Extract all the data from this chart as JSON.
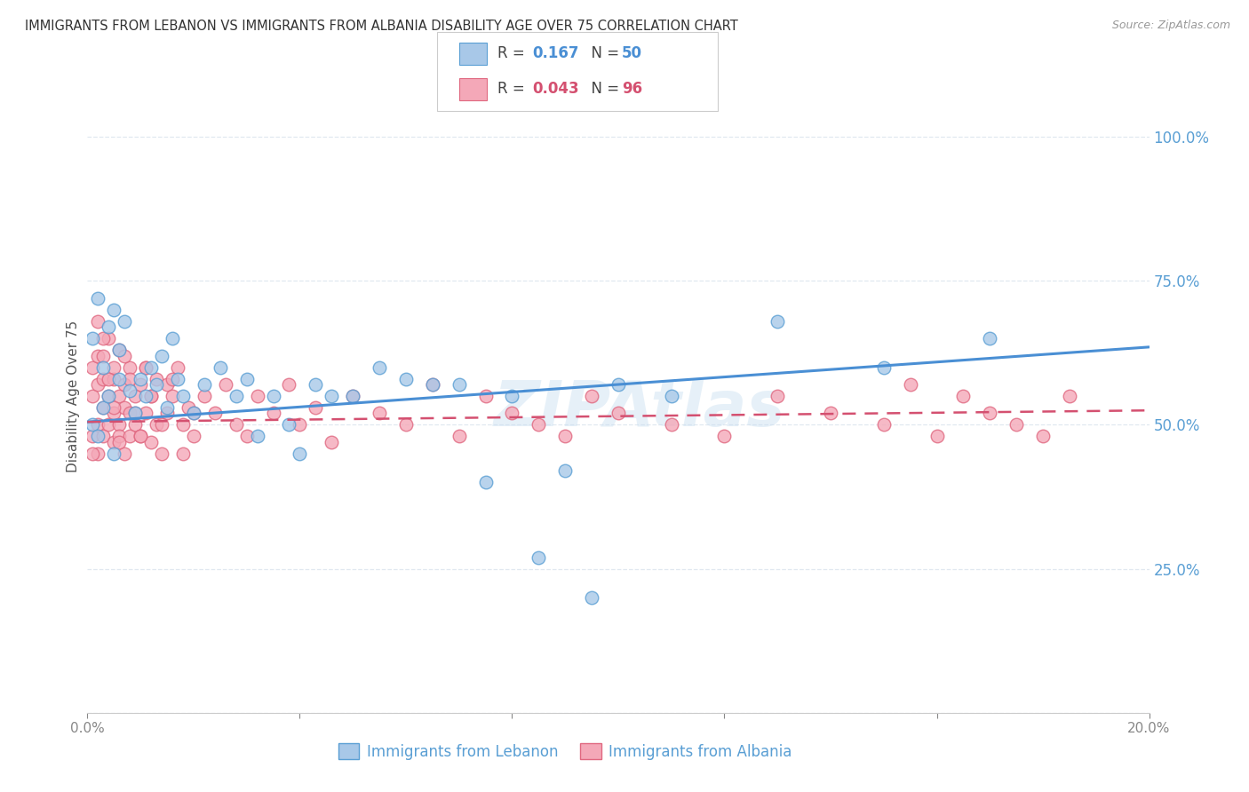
{
  "title": "IMMIGRANTS FROM LEBANON VS IMMIGRANTS FROM ALBANIA DISABILITY AGE OVER 75 CORRELATION CHART",
  "source": "Source: ZipAtlas.com",
  "ylabel": "Disability Age Over 75",
  "x_min": 0.0,
  "x_max": 0.2,
  "y_min": 0.0,
  "y_max": 1.1,
  "lebanon_color": "#a8c8e8",
  "albania_color": "#f4a8b8",
  "lebanon_edge_color": "#5a9fd4",
  "albania_edge_color": "#e06880",
  "lebanon_line_color": "#4a8fd4",
  "albania_line_color": "#d45070",
  "R_lebanon": 0.167,
  "N_lebanon": 50,
  "R_albania": 0.043,
  "N_albania": 96,
  "legend_label_lebanon": "Immigrants from Lebanon",
  "legend_label_albania": "Immigrants from Albania",
  "watermark": "ZIPAtlas",
  "lebanon_x": [
    0.001,
    0.001,
    0.002,
    0.002,
    0.003,
    0.003,
    0.004,
    0.004,
    0.005,
    0.005,
    0.006,
    0.006,
    0.007,
    0.008,
    0.009,
    0.01,
    0.011,
    0.012,
    0.013,
    0.014,
    0.015,
    0.016,
    0.017,
    0.018,
    0.02,
    0.022,
    0.025,
    0.028,
    0.03,
    0.032,
    0.035,
    0.038,
    0.04,
    0.043,
    0.046,
    0.05,
    0.055,
    0.06,
    0.065,
    0.07,
    0.075,
    0.08,
    0.085,
    0.09,
    0.095,
    0.1,
    0.11,
    0.13,
    0.15,
    0.17
  ],
  "lebanon_y": [
    0.5,
    0.65,
    0.48,
    0.72,
    0.53,
    0.6,
    0.55,
    0.67,
    0.45,
    0.7,
    0.58,
    0.63,
    0.68,
    0.56,
    0.52,
    0.58,
    0.55,
    0.6,
    0.57,
    0.62,
    0.53,
    0.65,
    0.58,
    0.55,
    0.52,
    0.57,
    0.6,
    0.55,
    0.58,
    0.48,
    0.55,
    0.5,
    0.45,
    0.57,
    0.55,
    0.55,
    0.6,
    0.58,
    0.57,
    0.57,
    0.4,
    0.55,
    0.27,
    0.42,
    0.2,
    0.57,
    0.55,
    0.68,
    0.6,
    0.65
  ],
  "albania_x": [
    0.001,
    0.001,
    0.001,
    0.002,
    0.002,
    0.002,
    0.002,
    0.003,
    0.003,
    0.003,
    0.003,
    0.004,
    0.004,
    0.004,
    0.005,
    0.005,
    0.005,
    0.005,
    0.006,
    0.006,
    0.006,
    0.006,
    0.007,
    0.007,
    0.007,
    0.008,
    0.008,
    0.008,
    0.009,
    0.009,
    0.01,
    0.01,
    0.011,
    0.011,
    0.012,
    0.012,
    0.013,
    0.013,
    0.014,
    0.015,
    0.015,
    0.016,
    0.017,
    0.018,
    0.019,
    0.02,
    0.022,
    0.024,
    0.026,
    0.028,
    0.03,
    0.032,
    0.035,
    0.038,
    0.04,
    0.043,
    0.046,
    0.05,
    0.055,
    0.06,
    0.065,
    0.07,
    0.075,
    0.08,
    0.085,
    0.09,
    0.095,
    0.1,
    0.11,
    0.12,
    0.13,
    0.14,
    0.15,
    0.155,
    0.16,
    0.165,
    0.17,
    0.175,
    0.18,
    0.185,
    0.001,
    0.002,
    0.003,
    0.004,
    0.005,
    0.006,
    0.007,
    0.008,
    0.009,
    0.01,
    0.011,
    0.012,
    0.014,
    0.016,
    0.018,
    0.02
  ],
  "albania_y": [
    0.55,
    0.6,
    0.48,
    0.62,
    0.5,
    0.57,
    0.45,
    0.53,
    0.58,
    0.48,
    0.62,
    0.55,
    0.5,
    0.65,
    0.58,
    0.52,
    0.47,
    0.6,
    0.55,
    0.5,
    0.63,
    0.48,
    0.53,
    0.57,
    0.45,
    0.6,
    0.52,
    0.48,
    0.55,
    0.5,
    0.57,
    0.48,
    0.52,
    0.6,
    0.47,
    0.55,
    0.5,
    0.58,
    0.45,
    0.52,
    0.57,
    0.55,
    0.6,
    0.5,
    0.53,
    0.48,
    0.55,
    0.52,
    0.57,
    0.5,
    0.48,
    0.55,
    0.52,
    0.57,
    0.5,
    0.53,
    0.47,
    0.55,
    0.52,
    0.5,
    0.57,
    0.48,
    0.55,
    0.52,
    0.5,
    0.48,
    0.55,
    0.52,
    0.5,
    0.48,
    0.55,
    0.52,
    0.5,
    0.57,
    0.48,
    0.55,
    0.52,
    0.5,
    0.48,
    0.55,
    0.45,
    0.68,
    0.65,
    0.58,
    0.53,
    0.47,
    0.62,
    0.58,
    0.52,
    0.48,
    0.6,
    0.55,
    0.5,
    0.58,
    0.45,
    0.52
  ]
}
